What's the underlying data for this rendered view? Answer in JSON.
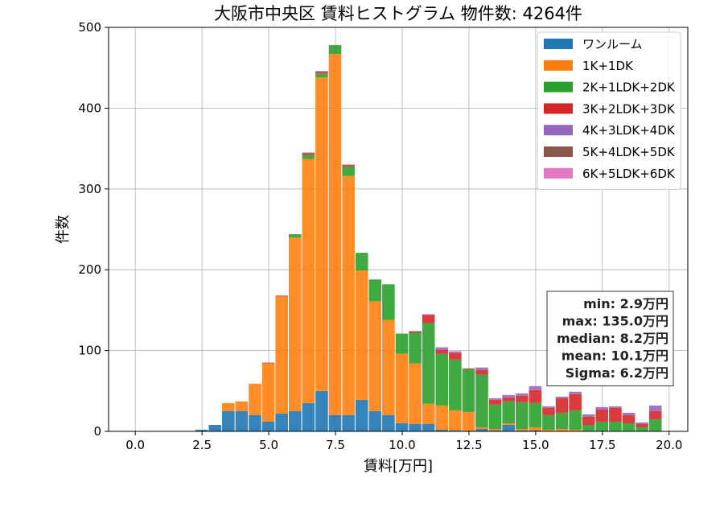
{
  "chart_data": {
    "type": "bar",
    "stacked": true,
    "title": "大阪市中央区 賃料ヒストグラム  物件数: 4264件",
    "xlabel": "賃料[万円]",
    "ylabel": "件数",
    "xlim": [
      -1.0,
      20.7
    ],
    "ylim": [
      0,
      500
    ],
    "xticks": [
      0.0,
      2.5,
      5.0,
      7.5,
      10.0,
      12.5,
      15.0,
      17.5,
      20.0
    ],
    "xtick_labels": [
      "0.0",
      "2.5",
      "5.0",
      "7.5",
      "10.0",
      "12.5",
      "15.0",
      "17.5",
      "20.0"
    ],
    "yticks": [
      0,
      100,
      200,
      300,
      400,
      500
    ],
    "ytick_labels": [
      "0",
      "100",
      "200",
      "300",
      "400",
      "500"
    ],
    "grid": true,
    "legend_position": "top-right",
    "bin_width": 0.5,
    "x": [
      2.5,
      3.0,
      3.5,
      4.0,
      4.5,
      5.0,
      5.5,
      6.0,
      6.5,
      7.0,
      7.5,
      8.0,
      8.5,
      9.0,
      9.5,
      10.0,
      10.5,
      11.0,
      11.5,
      12.0,
      12.5,
      13.0,
      13.5,
      14.0,
      14.5,
      15.0,
      15.5,
      16.0,
      16.5,
      17.0,
      17.5,
      18.0,
      18.5,
      19.0,
      19.5
    ],
    "series": [
      {
        "name": "ワンルーム",
        "color": "#1f77b4",
        "values": [
          2,
          8,
          25,
          25,
          20,
          12,
          22,
          25,
          35,
          50,
          20,
          20,
          39,
          25,
          20,
          10,
          9,
          9,
          2,
          1,
          0,
          3,
          1,
          8,
          1,
          1,
          0,
          0,
          0,
          0,
          0,
          0,
          0,
          0,
          0
        ]
      },
      {
        "name": "1K+1DK",
        "color": "#ff7f0e",
        "values": [
          0,
          0,
          10,
          12,
          39,
          72,
          145,
          215,
          302,
          388,
          447,
          296,
          160,
          136,
          118,
          86,
          75,
          25,
          30,
          25,
          24,
          2,
          2,
          2,
          2,
          4,
          2,
          3,
          2,
          0,
          0,
          0,
          0,
          0,
          0
        ]
      },
      {
        "name": "2K+1LDK+2DK",
        "color": "#2ca02c",
        "values": [
          0,
          0,
          0,
          0,
          0,
          0,
          0,
          4,
          5,
          5,
          11,
          12,
          22,
          27,
          44,
          25,
          38,
          100,
          64,
          63,
          53,
          65,
          30,
          27,
          33,
          30,
          18,
          20,
          24,
          8,
          12,
          12,
          10,
          5,
          15
        ]
      },
      {
        "name": "3K+2LDK+3DK",
        "color": "#d62728",
        "values": [
          0,
          0,
          0,
          0,
          0,
          1,
          1,
          0,
          2,
          2,
          0,
          2,
          0,
          0,
          0,
          0,
          2,
          10,
          5,
          8,
          1,
          6,
          6,
          5,
          8,
          16,
          9,
          18,
          20,
          10,
          15,
          17,
          10,
          4,
          10
        ]
      },
      {
        "name": "4K+3LDK+4DK",
        "color": "#9467bd",
        "values": [
          0,
          0,
          0,
          0,
          0,
          0,
          0,
          0,
          0,
          1,
          0,
          0,
          0,
          0,
          0,
          0,
          0,
          1,
          3,
          2,
          0,
          3,
          2,
          3,
          3,
          5,
          2,
          2,
          3,
          3,
          3,
          2,
          3,
          2,
          7
        ]
      },
      {
        "name": "5K+4LDK+5DK",
        "color": "#8c564b",
        "values": [
          0,
          0,
          0,
          0,
          0,
          0,
          0,
          0,
          1,
          0,
          0,
          0,
          0,
          0,
          0,
          0,
          0,
          0,
          0,
          0,
          0,
          0,
          0,
          0,
          0,
          0,
          0,
          0,
          0,
          0,
          0,
          0,
          0,
          0,
          0
        ]
      },
      {
        "name": "6K+5LDK+6DK",
        "color": "#e377c2",
        "values": [
          0,
          0,
          0,
          0,
          0,
          0,
          0,
          0,
          0,
          0,
          0,
          0,
          0,
          0,
          0,
          0,
          0,
          0,
          0,
          0,
          0,
          0,
          0,
          0,
          0,
          0,
          0,
          0,
          0,
          0,
          0,
          0,
          0,
          0,
          0
        ]
      }
    ],
    "stats_box": {
      "lines": [
        "min: 2.9万円",
        "max: 135.0万円",
        "median: 8.2万円",
        "mean: 10.1万円",
        "Sigma: 6.2万円"
      ],
      "position": "right"
    }
  }
}
